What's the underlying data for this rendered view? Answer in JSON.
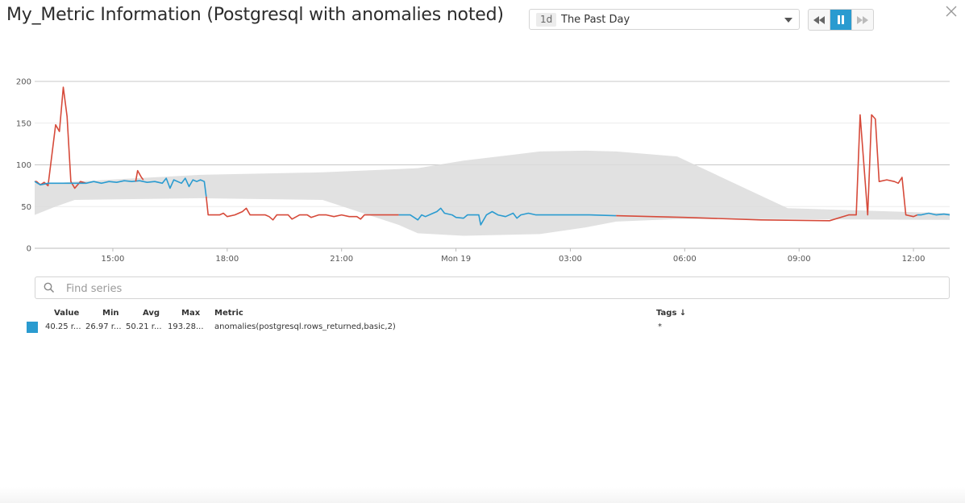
{
  "header": {
    "title": "My_Metric Information (Postgresql with anomalies noted)",
    "timeframe_badge": "1d",
    "timeframe_label": "The Past Day",
    "icons": {
      "caret": "chevron-down-icon",
      "rewind": "rewind-icon",
      "pause": "pause-icon",
      "forward": "fast-forward-icon",
      "close": "close-icon"
    }
  },
  "chart_data": {
    "type": "line",
    "title": "",
    "xlabel": "",
    "ylabel": "",
    "ylim": [
      0,
      200
    ],
    "y_ticks": [
      "0",
      "50",
      "100",
      "150",
      "200"
    ],
    "x_range_hours": [
      12.95,
      36.95
    ],
    "x_ticks": [
      {
        "hour": 15,
        "label": "15:00"
      },
      {
        "hour": 18,
        "label": "18:00"
      },
      {
        "hour": 21,
        "label": "21:00"
      },
      {
        "hour": 24,
        "label": "Mon 19"
      },
      {
        "hour": 27,
        "label": "03:00"
      },
      {
        "hour": 30,
        "label": "06:00"
      },
      {
        "hour": 33,
        "label": "09:00"
      },
      {
        "hour": 36,
        "label": "12:00"
      }
    ],
    "grid": true,
    "colors": {
      "normal": "#2a9bd0",
      "anomaly": "#d64a3a",
      "band": "#dcdcdc"
    },
    "band": {
      "x": [
        12.95,
        13.5,
        14.0,
        17.3,
        20.5,
        22.5,
        23.0,
        24.2,
        26.2,
        27.4,
        28.2,
        29.8,
        32.7,
        36.95
      ],
      "upper": [
        78,
        78,
        80,
        88,
        91,
        95,
        96,
        105,
        116,
        117,
        116,
        110,
        48,
        42
      ],
      "lower": [
        40,
        50,
        58,
        60,
        58,
        28,
        18,
        15,
        17,
        25,
        32,
        35,
        35,
        34
      ]
    },
    "series": [
      {
        "values": [
          [
            12.95,
            80
          ],
          [
            13.0,
            80
          ],
          [
            13.1,
            76
          ],
          [
            13.2,
            79
          ],
          [
            13.3,
            75
          ],
          [
            13.5,
            148
          ],
          [
            13.6,
            140
          ],
          [
            13.7,
            193
          ],
          [
            13.8,
            158
          ],
          [
            13.9,
            80
          ],
          [
            14.0,
            72
          ],
          [
            14.15,
            80
          ],
          [
            14.3,
            78
          ]
        ],
        "anomaly": true
      },
      {
        "values": [
          [
            12.95,
            80
          ],
          [
            13.1,
            76
          ],
          [
            13.3,
            78
          ],
          [
            14.3,
            78
          ],
          [
            14.5,
            80
          ],
          [
            14.7,
            78
          ],
          [
            14.9,
            80
          ],
          [
            15.1,
            79
          ],
          [
            15.3,
            81
          ],
          [
            15.5,
            80
          ],
          [
            15.7,
            81
          ],
          [
            15.9,
            79
          ],
          [
            16.1,
            80
          ],
          [
            16.3,
            78
          ],
          [
            16.4,
            84
          ],
          [
            16.5,
            72
          ],
          [
            16.6,
            82
          ],
          [
            16.8,
            78
          ],
          [
            16.9,
            84
          ],
          [
            17.0,
            74
          ],
          [
            17.1,
            82
          ],
          [
            17.2,
            80
          ],
          [
            17.3,
            82
          ],
          [
            17.4,
            80
          ],
          [
            17.45,
            62
          ]
        ],
        "anomaly": false
      },
      {
        "values": [
          [
            15.6,
            80
          ],
          [
            15.65,
            93
          ],
          [
            15.75,
            85
          ],
          [
            15.8,
            82
          ]
        ],
        "anomaly": true
      },
      {
        "values": [
          [
            17.45,
            62
          ],
          [
            17.5,
            40
          ],
          [
            17.8,
            40
          ],
          [
            17.9,
            42
          ],
          [
            18.0,
            38
          ],
          [
            18.2,
            40
          ],
          [
            18.4,
            44
          ],
          [
            18.5,
            48
          ],
          [
            18.6,
            40
          ],
          [
            19.0,
            40
          ],
          [
            19.1,
            38
          ],
          [
            19.2,
            34
          ],
          [
            19.3,
            40
          ],
          [
            19.6,
            40
          ],
          [
            19.7,
            35
          ],
          [
            19.9,
            40
          ],
          [
            20.1,
            40
          ],
          [
            20.2,
            37
          ],
          [
            20.4,
            40
          ],
          [
            20.6,
            40
          ],
          [
            20.8,
            38
          ],
          [
            21.0,
            40
          ],
          [
            21.2,
            38
          ],
          [
            21.4,
            38
          ],
          [
            21.5,
            35
          ],
          [
            21.6,
            40
          ],
          [
            21.8,
            40
          ],
          [
            22.0,
            40
          ],
          [
            22.5,
            40
          ]
        ],
        "anomaly": true
      },
      {
        "values": [
          [
            22.5,
            40
          ],
          [
            22.8,
            40
          ],
          [
            23.0,
            34
          ],
          [
            23.1,
            40
          ],
          [
            23.2,
            38
          ],
          [
            23.4,
            42
          ],
          [
            23.5,
            44
          ],
          [
            23.6,
            48
          ],
          [
            23.7,
            42
          ],
          [
            23.9,
            40
          ],
          [
            24.0,
            37
          ],
          [
            24.2,
            36
          ],
          [
            24.3,
            40
          ],
          [
            24.6,
            40
          ],
          [
            24.65,
            28
          ],
          [
            24.8,
            40
          ],
          [
            24.95,
            44
          ],
          [
            25.1,
            40
          ],
          [
            25.3,
            38
          ],
          [
            25.5,
            42
          ],
          [
            25.6,
            36
          ],
          [
            25.7,
            40
          ],
          [
            25.9,
            42
          ],
          [
            26.1,
            40
          ],
          [
            26.5,
            40
          ],
          [
            27.0,
            40
          ],
          [
            27.5,
            40
          ],
          [
            28.2,
            39
          ]
        ],
        "anomaly": false
      },
      {
        "values": [
          [
            28.2,
            39
          ],
          [
            30.0,
            37
          ],
          [
            32.0,
            34
          ],
          [
            33.8,
            33
          ],
          [
            34.3,
            40
          ],
          [
            34.5,
            40
          ],
          [
            34.6,
            160
          ],
          [
            34.8,
            40
          ],
          [
            34.9,
            160
          ],
          [
            35.0,
            155
          ],
          [
            35.1,
            80
          ],
          [
            35.3,
            82
          ],
          [
            35.5,
            80
          ],
          [
            35.6,
            78
          ],
          [
            35.7,
            85
          ],
          [
            35.8,
            40
          ],
          [
            36.0,
            38
          ],
          [
            36.1,
            40
          ]
        ],
        "anomaly": true
      },
      {
        "values": [
          [
            36.1,
            40
          ],
          [
            36.2,
            40
          ],
          [
            36.4,
            42
          ],
          [
            36.6,
            40
          ],
          [
            36.8,
            41
          ],
          [
            36.95,
            40
          ]
        ],
        "anomaly": false
      }
    ]
  },
  "search": {
    "placeholder": "Find series",
    "icon": "search-icon"
  },
  "legend": {
    "headers": {
      "value": "Value",
      "min": "Min",
      "avg": "Avg",
      "max": "Max",
      "metric": "Metric",
      "tags": "Tags ↓"
    },
    "rows": [
      {
        "color": "#2a9bd0",
        "value": "40.25 r...",
        "min": "26.97 r...",
        "avg": "50.21 r...",
        "max": "193.28...",
        "metric": "anomalies(postgresql.rows_returned,basic,2)",
        "tags": "*"
      }
    ]
  }
}
